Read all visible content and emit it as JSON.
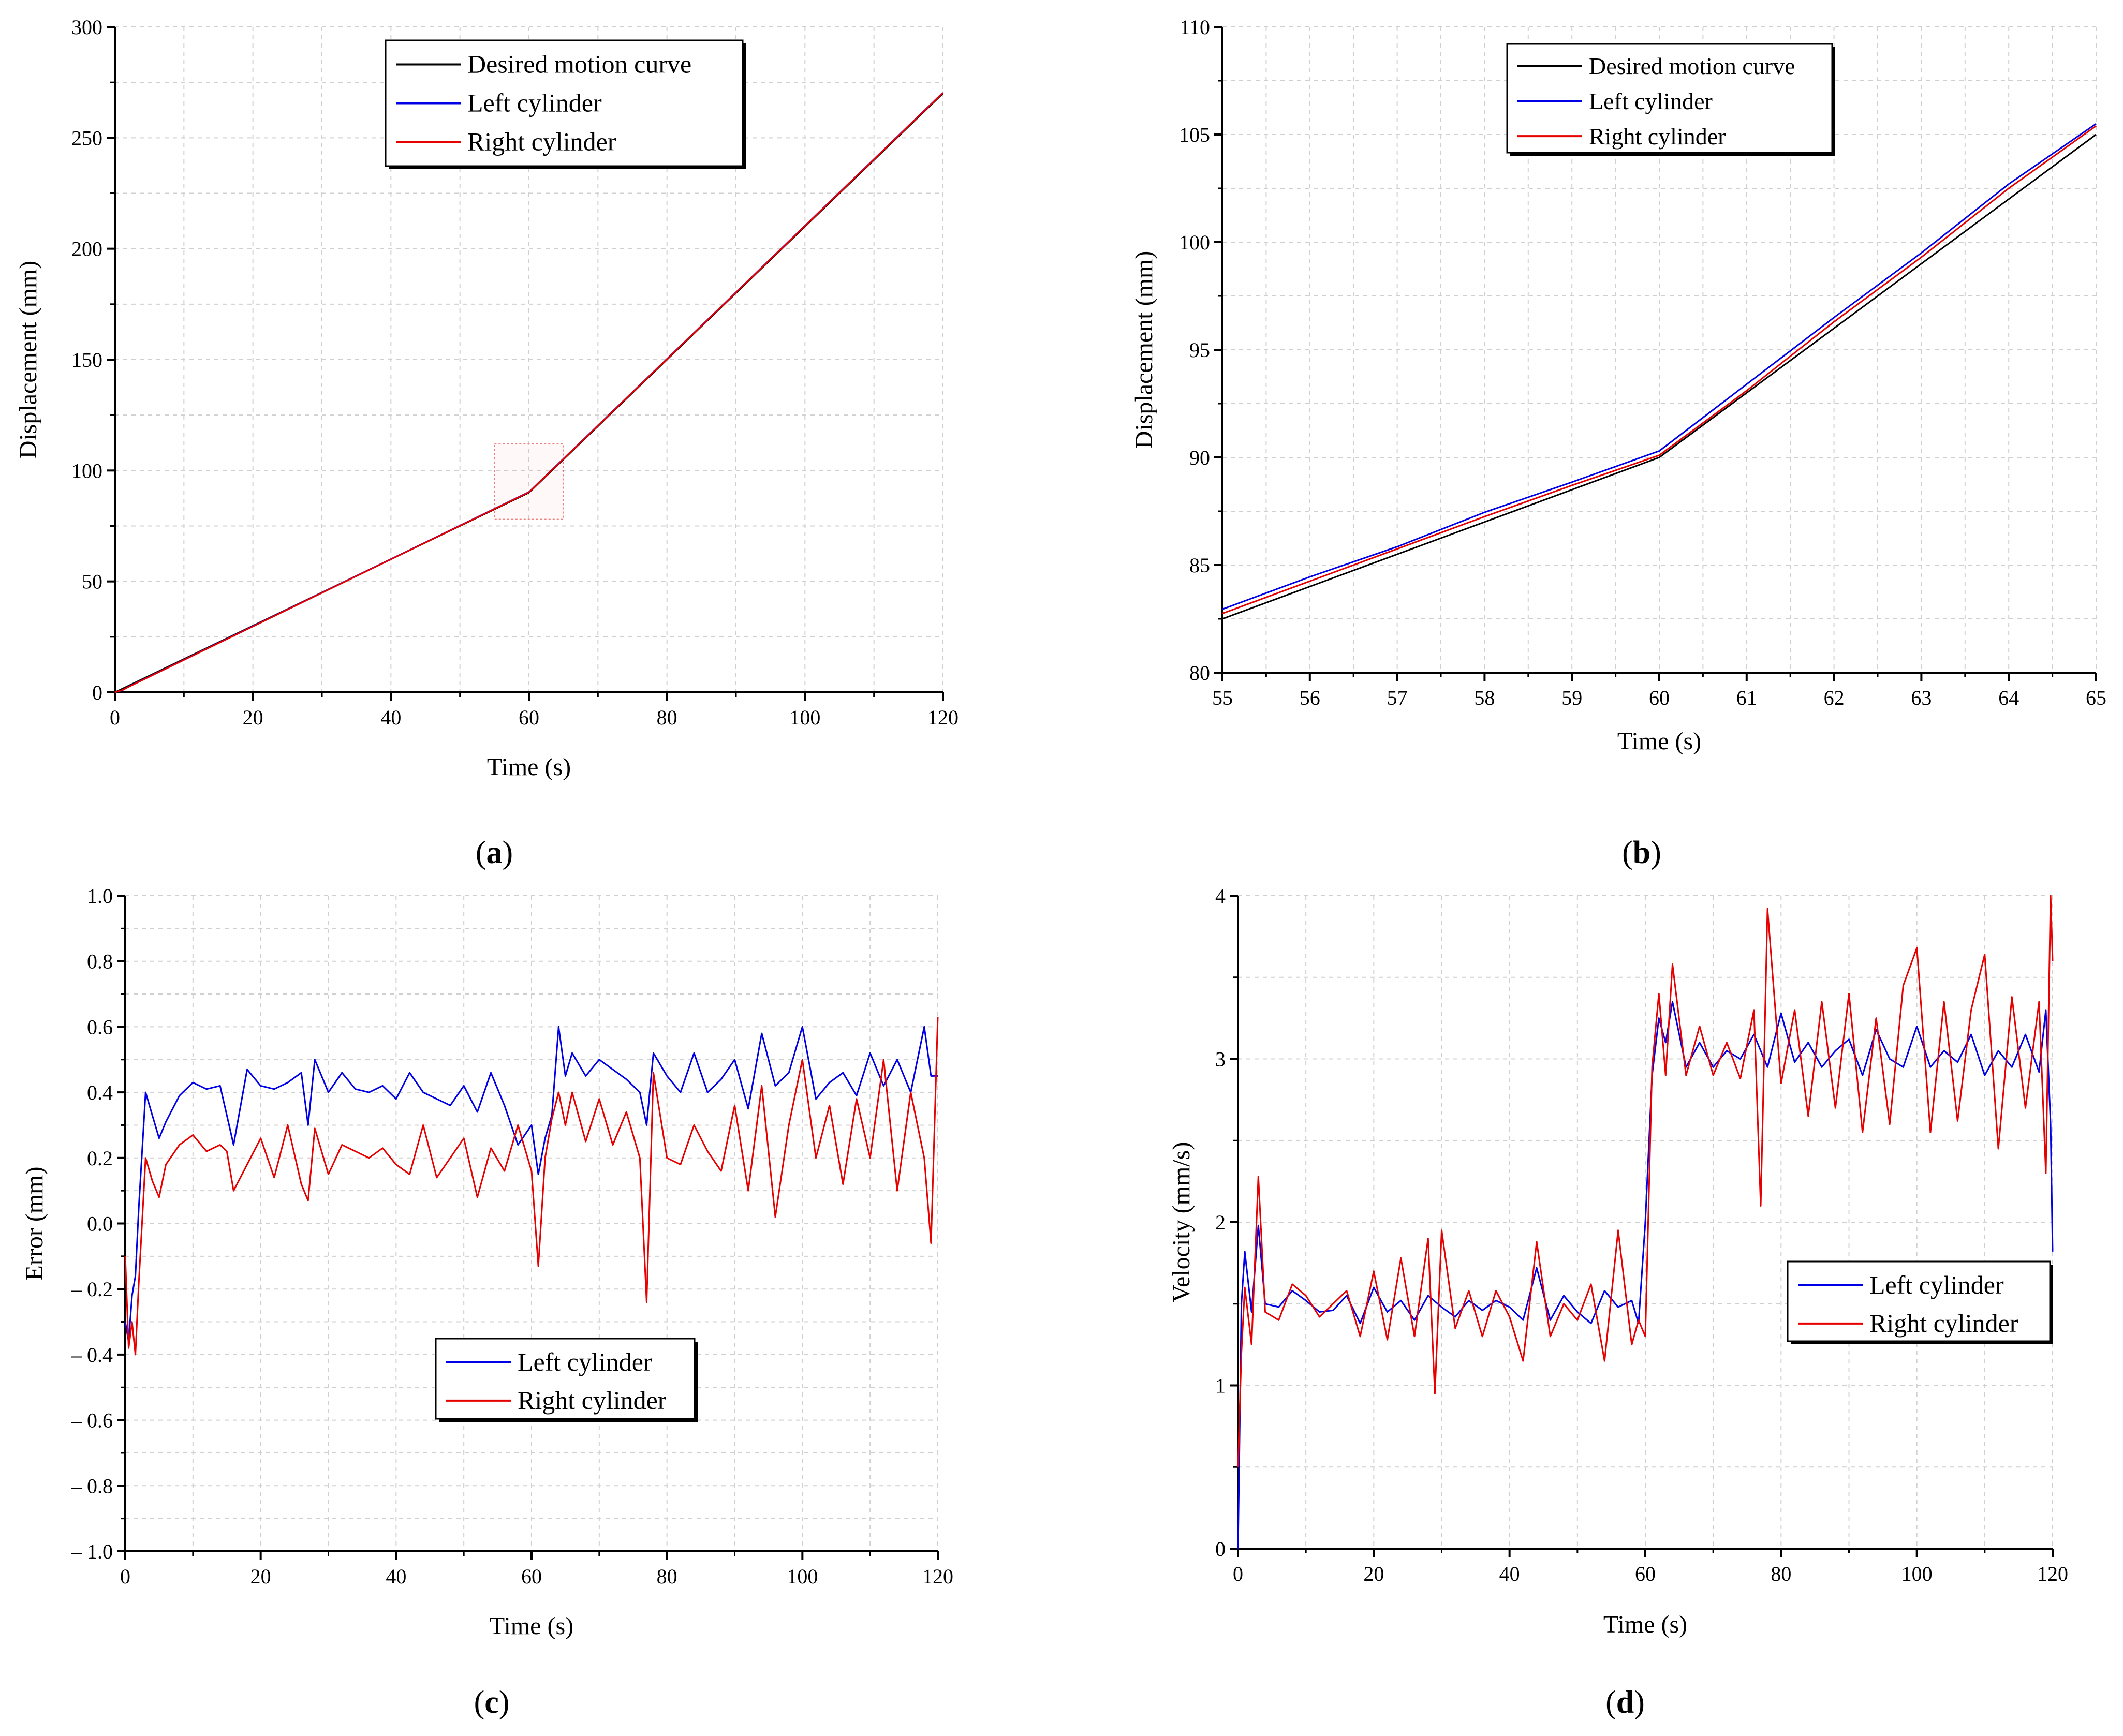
{
  "figure": {
    "panels": [
      {
        "id": "a",
        "label": "a"
      },
      {
        "id": "b",
        "label": "b"
      },
      {
        "id": "c",
        "label": "c"
      },
      {
        "id": "d",
        "label": "d"
      }
    ]
  },
  "colors": {
    "desired": "#000000",
    "left": "#0000e6",
    "right": "#e60000",
    "grid": "#d0d0d0",
    "zoom_box": "#f08080"
  },
  "chart_data": [
    {
      "panel": "a",
      "type": "line",
      "title": "",
      "xlabel": "Time (s)",
      "ylabel": "Displacement (mm)",
      "xlim": [
        0,
        120
      ],
      "ylim": [
        0,
        300
      ],
      "xticks": [
        0,
        20,
        40,
        60,
        80,
        100,
        120
      ],
      "yticks": [
        0,
        50,
        100,
        150,
        200,
        250,
        300
      ],
      "xtick_labels": [
        "0",
        "20",
        "40",
        "60",
        "80",
        "100",
        "120"
      ],
      "ytick_labels": [
        "0",
        "50",
        "100",
        "150",
        "200",
        "250",
        "300"
      ],
      "grid": true,
      "legend": [
        "Desired motion curve",
        "Left cylinder",
        "Right cylinder"
      ],
      "legend_position": "top-right",
      "zoom_region": {
        "x": [
          55,
          65
        ],
        "y": [
          78,
          112
        ]
      },
      "series": [
        {
          "name": "Desired motion curve",
          "x": [
            0,
            60,
            120
          ],
          "y": [
            0,
            90,
            270
          ]
        },
        {
          "name": "Left cylinder",
          "x": [
            0,
            1,
            2,
            60,
            120
          ],
          "y": [
            0,
            0.8,
            2.6,
            90.3,
            270.4
          ]
        },
        {
          "name": "Right cylinder",
          "x": [
            0,
            1,
            2,
            60,
            120
          ],
          "y": [
            0,
            0.9,
            2.5,
            90.2,
            270.3
          ]
        }
      ]
    },
    {
      "panel": "b",
      "type": "line",
      "title": "",
      "xlabel": "Time (s)",
      "ylabel": "Displacement (mm)",
      "xlim": [
        55,
        65
      ],
      "ylim": [
        80,
        110
      ],
      "xticks": [
        55,
        56,
        57,
        58,
        59,
        60,
        61,
        62,
        63,
        64,
        65
      ],
      "yticks": [
        80,
        85,
        90,
        95,
        100,
        105,
        110
      ],
      "xtick_labels": [
        "55",
        "56",
        "57",
        "58",
        "59",
        "60",
        "61",
        "62",
        "63",
        "64",
        "65"
      ],
      "ytick_labels": [
        "80",
        "85",
        "90",
        "95",
        "100",
        "105",
        "110"
      ],
      "grid": true,
      "legend": [
        "Desired motion curve",
        "Left cylinder",
        "Right cylinder"
      ],
      "legend_position": "top-right",
      "series": [
        {
          "name": "Desired motion curve",
          "x": [
            55,
            60,
            65
          ],
          "y": [
            82.5,
            90.0,
            105.0
          ]
        },
        {
          "name": "Left cylinder",
          "x": [
            55,
            56,
            57,
            58,
            59,
            60,
            61,
            62,
            63,
            64,
            65
          ],
          "y": [
            82.95,
            84.45,
            85.85,
            87.45,
            88.85,
            90.3,
            93.4,
            96.5,
            99.5,
            102.7,
            105.5
          ]
        },
        {
          "name": "Right cylinder",
          "x": [
            55,
            56,
            57,
            58,
            59,
            60,
            61,
            62,
            63,
            64,
            65
          ],
          "y": [
            82.75,
            84.25,
            85.75,
            87.25,
            88.7,
            90.1,
            93.1,
            96.3,
            99.3,
            102.5,
            105.4
          ]
        }
      ]
    },
    {
      "panel": "c",
      "type": "line",
      "title": "",
      "xlabel": "Time (s)",
      "ylabel": "Error (mm)",
      "xlim": [
        0,
        120
      ],
      "ylim": [
        -1.0,
        1.0
      ],
      "xticks": [
        0,
        20,
        40,
        60,
        80,
        100,
        120
      ],
      "yticks": [
        -1.0,
        -0.8,
        -0.6,
        -0.4,
        -0.2,
        0.0,
        0.2,
        0.4,
        0.6,
        0.8,
        1.0
      ],
      "xtick_labels": [
        "0",
        "20",
        "40",
        "60",
        "80",
        "100",
        "120"
      ],
      "ytick_labels": [
        "– 1.0",
        "– 0.8",
        "– 0.6",
        "– 0.4",
        "– 0.2",
        "0.0",
        "0.2",
        "0.4",
        "0.6",
        "0.8",
        "1.0"
      ],
      "grid": true,
      "legend": [
        "Left cylinder",
        "Right cylinder"
      ],
      "legend_position": "lower-center",
      "series": [
        {
          "name": "Left cylinder",
          "x": [
            0,
            0.5,
            1,
            1.5,
            2,
            3,
            4,
            5,
            6,
            8,
            10,
            12,
            14,
            15,
            16,
            18,
            20,
            22,
            24,
            26,
            27,
            28,
            30,
            32,
            34,
            36,
            38,
            40,
            42,
            44,
            46,
            48,
            50,
            52,
            54,
            56,
            58,
            60,
            61,
            62,
            63,
            64,
            65,
            66,
            68,
            70,
            72,
            74,
            76,
            77,
            78,
            80,
            82,
            84,
            86,
            88,
            90,
            92,
            94,
            96,
            98,
            100,
            102,
            104,
            106,
            108,
            110,
            112,
            114,
            116,
            118,
            119,
            120
          ],
          "y": [
            -0.3,
            -0.36,
            -0.22,
            -0.16,
            0.05,
            0.4,
            0.33,
            0.26,
            0.31,
            0.39,
            0.43,
            0.41,
            0.42,
            0.33,
            0.24,
            0.47,
            0.42,
            0.41,
            0.43,
            0.46,
            0.3,
            0.5,
            0.4,
            0.46,
            0.41,
            0.4,
            0.42,
            0.38,
            0.46,
            0.4,
            0.38,
            0.36,
            0.42,
            0.34,
            0.46,
            0.36,
            0.24,
            0.3,
            0.15,
            0.26,
            0.33,
            0.6,
            0.45,
            0.52,
            0.45,
            0.5,
            0.47,
            0.44,
            0.4,
            0.3,
            0.52,
            0.45,
            0.4,
            0.52,
            0.4,
            0.44,
            0.5,
            0.35,
            0.58,
            0.42,
            0.46,
            0.6,
            0.38,
            0.43,
            0.46,
            0.39,
            0.52,
            0.42,
            0.5,
            0.4,
            0.6,
            0.45,
            0.45
          ]
        },
        {
          "name": "Right cylinder",
          "x": [
            0,
            0.5,
            1,
            1.5,
            2,
            3,
            4,
            5,
            6,
            8,
            10,
            12,
            14,
            15,
            16,
            18,
            20,
            22,
            24,
            26,
            27,
            28,
            30,
            32,
            34,
            36,
            38,
            40,
            42,
            44,
            46,
            48,
            50,
            52,
            54,
            56,
            58,
            60,
            61,
            62,
            63,
            64,
            65,
            66,
            68,
            70,
            72,
            74,
            76,
            77,
            78,
            80,
            82,
            84,
            86,
            88,
            90,
            92,
            94,
            96,
            98,
            100,
            102,
            104,
            106,
            108,
            110,
            112,
            114,
            116,
            118,
            119,
            120
          ],
          "y": [
            -0.1,
            -0.38,
            -0.3,
            -0.4,
            -0.18,
            0.2,
            0.13,
            0.08,
            0.18,
            0.24,
            0.27,
            0.22,
            0.24,
            0.22,
            0.1,
            0.18,
            0.26,
            0.14,
            0.3,
            0.12,
            0.07,
            0.29,
            0.15,
            0.24,
            0.22,
            0.2,
            0.23,
            0.18,
            0.15,
            0.3,
            0.14,
            0.2,
            0.26,
            0.08,
            0.23,
            0.16,
            0.3,
            0.16,
            -0.13,
            0.2,
            0.32,
            0.4,
            0.3,
            0.4,
            0.25,
            0.38,
            0.24,
            0.34,
            0.2,
            -0.24,
            0.46,
            0.2,
            0.18,
            0.3,
            0.22,
            0.16,
            0.36,
            0.1,
            0.42,
            0.02,
            0.3,
            0.5,
            0.2,
            0.36,
            0.12,
            0.38,
            0.2,
            0.5,
            0.1,
            0.4,
            0.2,
            -0.06,
            0.63
          ]
        }
      ]
    },
    {
      "panel": "d",
      "type": "line",
      "title": "",
      "xlabel": "Time (s)",
      "ylabel": "Velocity (mm/s)",
      "xlim": [
        0,
        120
      ],
      "ylim": [
        0,
        4
      ],
      "xticks": [
        0,
        20,
        40,
        60,
        80,
        100,
        120
      ],
      "yticks": [
        0,
        1,
        2,
        3,
        4
      ],
      "xtick_labels": [
        "0",
        "20",
        "40",
        "60",
        "80",
        "100",
        "120"
      ],
      "ytick_labels": [
        "0",
        "1",
        "2",
        "3",
        "4"
      ],
      "grid": true,
      "legend": [
        "Left cylinder",
        "Right cylinder"
      ],
      "legend_position": "right",
      "series": [
        {
          "name": "Left cylinder",
          "x": [
            0,
            0.5,
            1,
            2,
            3,
            4,
            6,
            8,
            10,
            12,
            14,
            16,
            18,
            20,
            22,
            24,
            26,
            28,
            30,
            32,
            34,
            36,
            38,
            40,
            42,
            44,
            46,
            48,
            50,
            52,
            54,
            56,
            58,
            59,
            60,
            61,
            62,
            63,
            64,
            66,
            68,
            70,
            72,
            74,
            76,
            78,
            80,
            82,
            84,
            86,
            88,
            90,
            92,
            94,
            96,
            98,
            100,
            102,
            104,
            106,
            108,
            110,
            112,
            114,
            116,
            118,
            119,
            119.7,
            120
          ],
          "y": [
            0.0,
            1.5,
            1.82,
            1.45,
            1.98,
            1.5,
            1.48,
            1.58,
            1.52,
            1.45,
            1.46,
            1.55,
            1.38,
            1.6,
            1.45,
            1.52,
            1.4,
            1.55,
            1.48,
            1.42,
            1.52,
            1.46,
            1.52,
            1.48,
            1.4,
            1.72,
            1.4,
            1.55,
            1.45,
            1.38,
            1.58,
            1.48,
            1.52,
            1.38,
            2.0,
            2.9,
            3.25,
            3.1,
            3.35,
            2.95,
            3.1,
            2.95,
            3.05,
            3.0,
            3.15,
            2.95,
            3.28,
            2.98,
            3.1,
            2.95,
            3.05,
            3.12,
            2.9,
            3.18,
            3.0,
            2.95,
            3.2,
            2.95,
            3.05,
            2.98,
            3.15,
            2.9,
            3.05,
            2.95,
            3.15,
            2.92,
            3.3,
            2.6,
            1.82
          ]
        },
        {
          "name": "Right cylinder",
          "x": [
            0,
            0.5,
            1,
            2,
            3,
            4,
            6,
            8,
            10,
            12,
            14,
            16,
            18,
            20,
            22,
            24,
            26,
            28,
            29,
            30,
            32,
            34,
            36,
            38,
            40,
            42,
            44,
            46,
            48,
            50,
            52,
            54,
            56,
            58,
            59,
            60,
            61,
            62,
            63,
            64,
            66,
            68,
            70,
            72,
            74,
            76,
            77,
            78,
            80,
            82,
            84,
            86,
            88,
            90,
            92,
            94,
            96,
            98,
            100,
            102,
            104,
            106,
            108,
            110,
            112,
            114,
            116,
            118,
            119,
            119.7,
            120
          ],
          "y": [
            0.5,
            1.2,
            1.6,
            1.25,
            2.28,
            1.45,
            1.4,
            1.62,
            1.55,
            1.42,
            1.5,
            1.58,
            1.3,
            1.7,
            1.28,
            1.78,
            1.3,
            1.9,
            0.95,
            1.95,
            1.35,
            1.58,
            1.3,
            1.58,
            1.42,
            1.15,
            1.88,
            1.3,
            1.5,
            1.4,
            1.62,
            1.15,
            1.95,
            1.25,
            1.4,
            1.3,
            2.95,
            3.4,
            2.9,
            3.58,
            2.9,
            3.2,
            2.9,
            3.1,
            2.88,
            3.3,
            2.1,
            3.92,
            2.85,
            3.3,
            2.65,
            3.35,
            2.7,
            3.4,
            2.55,
            3.25,
            2.6,
            3.45,
            3.68,
            2.55,
            3.35,
            2.62,
            3.3,
            3.64,
            2.45,
            3.38,
            2.7,
            3.35,
            2.3,
            4.0,
            3.6
          ]
        }
      ]
    }
  ]
}
